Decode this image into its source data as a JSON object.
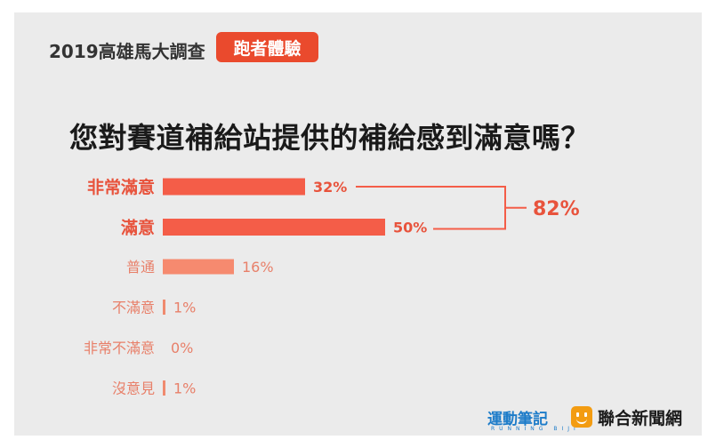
{
  "header": {
    "title": "2019高雄馬大調查",
    "badge": "跑者體驗"
  },
  "question": "您對賽道補給站提供的補給感到滿意嗎？",
  "chart_data": {
    "type": "bar",
    "orientation": "horizontal",
    "categories": [
      "非常滿意",
      "滿意",
      "普通",
      "不滿意",
      "非常不滿意",
      "沒意見"
    ],
    "values": [
      32,
      50,
      16,
      1,
      0,
      1
    ],
    "value_labels": [
      "32%",
      "50%",
      "16%",
      "1%",
      "0%",
      "1%"
    ],
    "unit": "%",
    "bracket": {
      "groups": [
        "非常滿意",
        "滿意"
      ],
      "label": "82%"
    },
    "colors": {
      "strong": "#f45d48",
      "medium": "#f68a6f",
      "weak": "#f08a6f",
      "label_strong": "#e8533c",
      "label_weak": "#e8806a"
    }
  },
  "footer": {
    "brand": "運動筆記",
    "brand_sub": "RUNNING BIJI",
    "news": "聯合新聞網"
  }
}
